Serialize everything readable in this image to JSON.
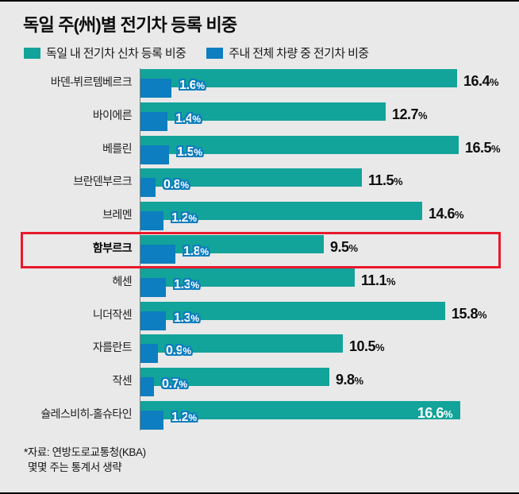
{
  "page": {
    "title": "독일 주(州)별 전기차 등록 비중",
    "background_color": "#e9e9e9",
    "rule_color": "#000000"
  },
  "legend": {
    "items": [
      {
        "label": "독일 내 전기차 신차 등록 비중",
        "color": "#12a39a"
      },
      {
        "label": "주내 전체 차량 중 전기차 비중",
        "color": "#0d7ebf"
      }
    ]
  },
  "chart_data": {
    "type": "bar",
    "orientation": "horizontal",
    "unit": "%",
    "categories": [
      "바덴-뷔르템베르크",
      "바이에른",
      "베를린",
      "브란덴부르크",
      "브레멘",
      "함부르크",
      "헤센",
      "니더작센",
      "자를란트",
      "작센",
      "슐레스비히-홀슈타인"
    ],
    "series": [
      {
        "name": "독일 내 전기차 신차 등록 비중",
        "color": "#12a39a",
        "values": [
          16.4,
          12.7,
          16.5,
          11.5,
          14.6,
          9.5,
          11.1,
          15.8,
          10.5,
          9.8,
          16.6
        ]
      },
      {
        "name": "주내 전체 차량 중 전기차 비중",
        "color": "#0d7ebf",
        "values": [
          1.6,
          1.4,
          1.5,
          0.8,
          1.2,
          1.8,
          1.3,
          1.3,
          0.9,
          0.7,
          1.2
        ]
      }
    ],
    "xlim": [
      0,
      18
    ],
    "grid": false,
    "legend_position": "top-left",
    "highlighted_category": "함부르크",
    "highlight_color": "#e8192c",
    "value_label_inside_categories": [
      "슐레스비히-홀슈타인"
    ],
    "percent_sign": "%"
  },
  "footer": {
    "line1": "*자료: 연방도로교통청(KBA)",
    "line2": "몇몇 주는 통계서 생략"
  }
}
